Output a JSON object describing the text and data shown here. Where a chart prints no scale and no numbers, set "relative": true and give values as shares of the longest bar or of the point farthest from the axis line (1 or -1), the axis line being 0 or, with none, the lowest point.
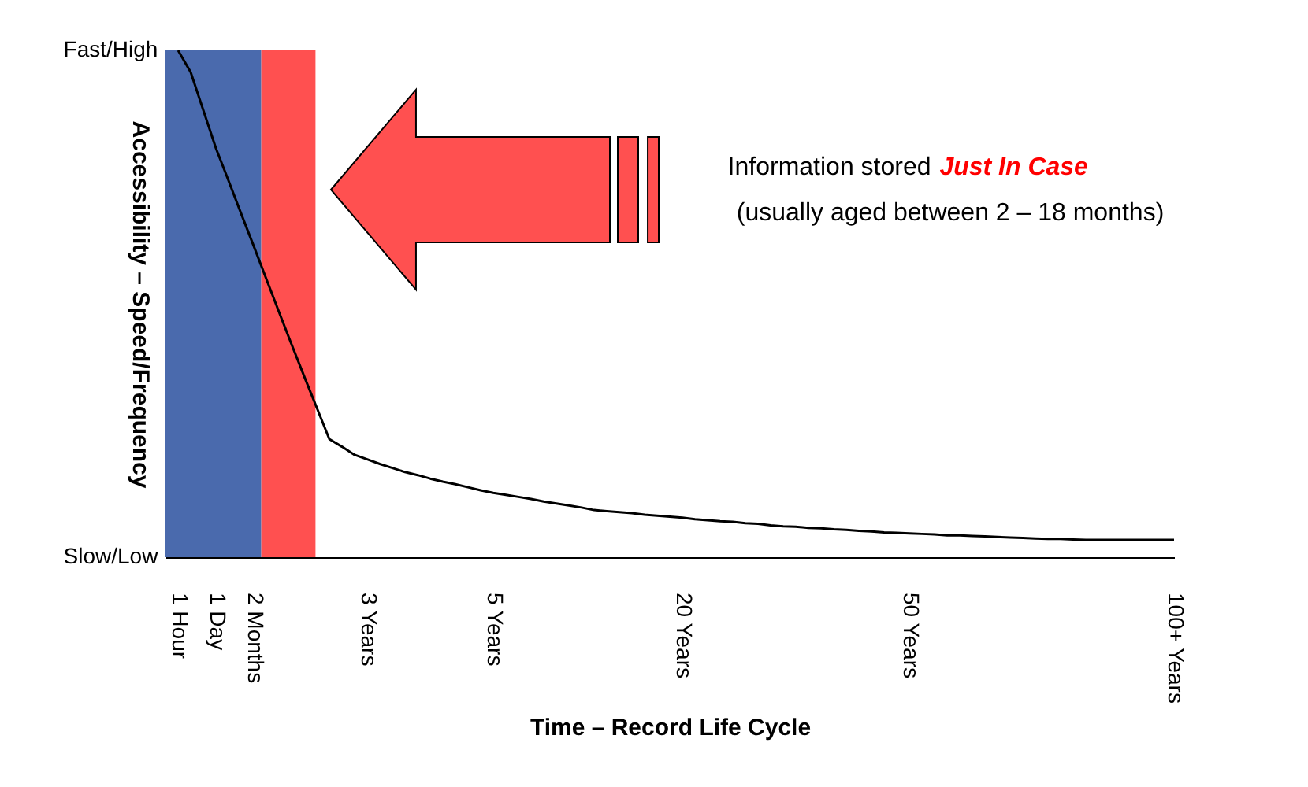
{
  "chart_data": {
    "type": "line",
    "relative": true,
    "xlabel": "Time – Record Life Cycle",
    "ylabel": "Accessibility – Speed/Frequency",
    "annotations": [
      "Fast/High",
      "Slow/Low",
      "Information stored",
      "Just In Case",
      "(usually aged between 2 – 18 months)"
    ],
    "categories": [
      null,
      "1 Hour",
      null,
      null,
      "1 Day",
      null,
      null,
      "2 Months",
      null,
      null,
      null,
      null,
      null,
      null,
      null,
      null,
      "3 Years",
      null,
      null,
      null,
      null,
      null,
      null,
      null,
      null,
      null,
      "5 Years",
      null,
      null,
      null,
      null,
      null,
      null,
      null,
      null,
      null,
      null,
      null,
      null,
      null,
      null,
      "20 Years",
      null,
      null,
      null,
      null,
      null,
      null,
      null,
      null,
      null,
      null,
      null,
      null,
      null,
      null,
      null,
      null,
      null,
      "50 Years",
      null,
      null,
      null,
      null,
      null,
      null,
      null,
      null,
      null,
      null,
      null,
      null,
      null,
      null,
      null,
      null,
      null,
      null,
      null,
      null,
      "100+ Years"
    ],
    "series": [
      {
        "color": "#000000",
        "values": [
          null,
          1.0,
          0.957,
          0.882,
          0.807,
          0.743,
          0.678,
          0.614,
          0.549,
          0.484,
          0.42,
          0.357,
          0.295,
          0.233,
          0.218,
          0.202,
          0.193,
          0.184,
          0.176,
          0.168,
          0.162,
          0.155,
          0.149,
          0.144,
          0.138,
          0.132,
          0.127,
          0.123,
          0.119,
          0.115,
          0.11,
          0.106,
          0.102,
          0.098,
          0.093,
          0.091,
          0.089,
          0.087,
          0.084,
          0.082,
          0.08,
          0.078,
          0.075,
          0.073,
          0.071,
          0.07,
          0.067,
          0.066,
          0.063,
          0.061,
          0.06,
          0.058,
          0.057,
          0.055,
          0.054,
          0.052,
          0.051,
          0.049,
          0.048,
          0.047,
          0.046,
          0.045,
          0.043,
          0.043,
          0.042,
          0.041,
          0.04,
          0.039,
          0.038,
          0.037,
          0.036,
          0.036,
          0.035,
          0.034,
          0.034,
          0.034,
          0.034,
          0.034,
          0.034,
          0.034,
          0.034
        ]
      }
    ],
    "grid": false,
    "marker": "none",
    "line_style": "solid"
  }
}
